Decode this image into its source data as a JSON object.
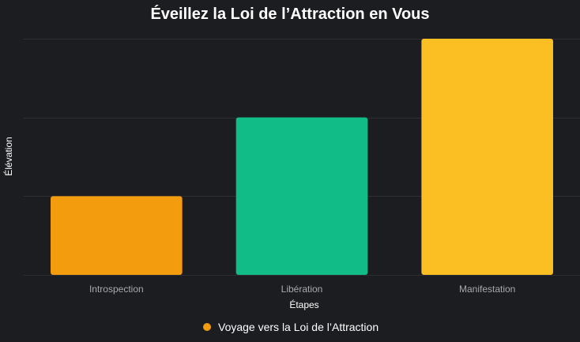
{
  "chart_data": {
    "type": "bar",
    "title": "Éveillez la Loi de l’Attraction en Vous",
    "xlabel": "Étapes",
    "ylabel": "Élévation",
    "categories": [
      "Introspection",
      "Libération",
      "Manifestation"
    ],
    "series": [
      {
        "name": "Voyage vers la Loi de l’Attraction",
        "values": [
          1,
          2,
          3
        ],
        "colors": [
          "#f39c0e",
          "#12bc86",
          "#fbbf24"
        ]
      }
    ],
    "ylim": [
      0,
      3
    ],
    "grid": true,
    "y_tick_labels_shown": false,
    "legend_position": "bottom"
  },
  "colors": {
    "background": "#1c1d21",
    "grid": "#2e2f34",
    "legend_marker": "#f39c0e"
  }
}
